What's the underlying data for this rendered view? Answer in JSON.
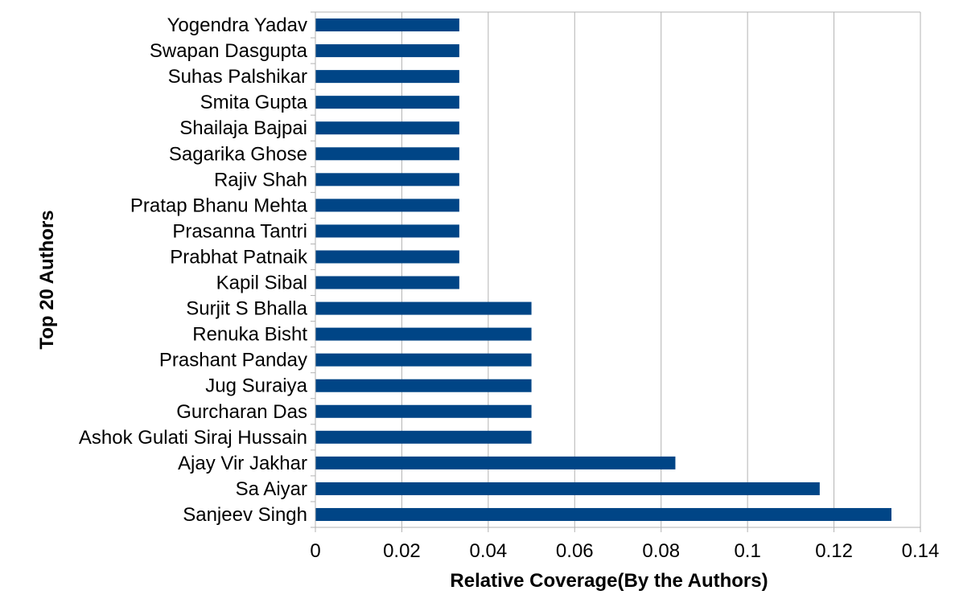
{
  "chart_data": {
    "type": "bar",
    "orientation": "horizontal",
    "categories": [
      "Yogendra Yadav",
      "Swapan Dasgupta",
      "Suhas Palshikar",
      "Smita Gupta",
      "Shailaja Bajpai",
      "Sagarika Ghose",
      "Rajiv Shah",
      "Pratap Bhanu Mehta",
      "Prasanna Tantri",
      "Prabhat Patnaik",
      "Kapil Sibal",
      "Surjit S Bhalla",
      "Renuka Bisht",
      "Prashant Panday",
      "Jug Suraiya",
      "Gurcharan Das",
      "Ashok Gulati Siraj Hussain",
      "Ajay Vir Jakhar",
      "Sa Aiyar",
      "Sanjeev Singh"
    ],
    "values": [
      0.0333,
      0.0333,
      0.0333,
      0.0333,
      0.0333,
      0.0333,
      0.0333,
      0.0333,
      0.0333,
      0.0333,
      0.0333,
      0.05,
      0.05,
      0.05,
      0.05,
      0.05,
      0.05,
      0.0833,
      0.1167,
      0.1333
    ],
    "xlim": [
      0,
      0.14
    ],
    "xticks": [
      0,
      0.02,
      0.04,
      0.06,
      0.08,
      0.1,
      0.12,
      0.14
    ],
    "xtick_labels": [
      "0",
      "0.02",
      "0.04",
      "0.06",
      "0.08",
      "0.1",
      "0.12",
      "0.14"
    ],
    "xlabel": "Relative Coverage(By the Authors)",
    "ylabel": "Top 20 Authors",
    "title": "",
    "grid": "vertical",
    "legend": "none",
    "bar_color": "#004586",
    "grid_color": "#b3b3b3"
  }
}
